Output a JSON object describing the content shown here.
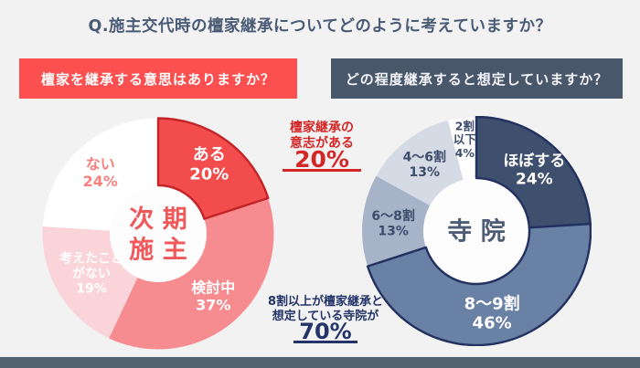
{
  "title": "Q.施主交代時の檀家継承についてどのように考えていますか？",
  "palette": {
    "background": "#F2F2F3",
    "title_color": "#4A5B76",
    "red_banner_bg": "#FC4F4F",
    "navy_banner_bg": "#49576B",
    "banner_text": "#FFFFFF",
    "red_accent": "#D32626",
    "navy_accent": "#233568",
    "bottom_bar": "#53636F"
  },
  "left_chart": {
    "question": "檀家を継承する意思はありますか？"
  },
  "right_chart": {
    "question": "どの程度継承すると想定していますか？"
  },
  "annotations": {
    "left": {
      "lines": [
        "檀家継承の",
        "意志がある"
      ],
      "value": "20%",
      "color": "#D32626"
    },
    "right": {
      "lines": [
        "8割以上が檀家継承と",
        "想定している寺院が"
      ],
      "value": "70%",
      "color": "#233568"
    }
  },
  "chart_data": [
    {
      "type": "pie",
      "subtype": "donut",
      "title": "檀家を継承する意思はありますか？",
      "direction": "clockwise",
      "start_angle_deg": 0,
      "unit": "%",
      "categories": [
        "ある",
        "検討中",
        "考えたことがない",
        "ない"
      ],
      "values": [
        20,
        37,
        19,
        24
      ],
      "center": {
        "lines": [
          "次 期",
          "施 主"
        ],
        "color": "#F0585A",
        "font_size": 27,
        "hole_fill": "#FDFDFE"
      },
      "segments": [
        {
          "label": "ある",
          "value": 20,
          "color": "#F24C4C",
          "stroke": "#C32427",
          "label_lines": [
            "ある",
            "20%"
          ],
          "label_color": "#FFFFFF",
          "font_size": 18,
          "label_radius": 0.75
        },
        {
          "label": "検討中",
          "value": 37,
          "color": "#F68C90",
          "label_lines": [
            "検討中",
            "37%"
          ],
          "label_color": "#FFFFFF",
          "font_size": 16,
          "label_radius": 0.72
        },
        {
          "label": "考えたことがない",
          "value": 19,
          "color": "#FBD4D9",
          "label_lines": [
            "考えたこと",
            "がない",
            "19%"
          ],
          "label_color": "#FFFFFF",
          "font_size": 14,
          "label_radius": 0.67
        },
        {
          "label": "ない",
          "value": 24,
          "color": "#FFFFFF",
          "label_lines": [
            "ない",
            "24%"
          ],
          "label_color": "#F97F7F",
          "font_size": 16,
          "label_radius": 0.73
        }
      ]
    },
    {
      "type": "pie",
      "subtype": "donut",
      "title": "どの程度継承すると想定していますか？",
      "direction": "clockwise",
      "start_angle_deg": 0,
      "unit": "%",
      "categories": [
        "ほぼする",
        "8～9割",
        "6～8割",
        "4～6割",
        "2割以下"
      ],
      "values": [
        24,
        46,
        13,
        13,
        4
      ],
      "center": {
        "lines": [
          "寺 院"
        ],
        "color": "#4D5C75",
        "font_size": 27,
        "hole_fill": "#FDFDFE"
      },
      "segments": [
        {
          "label": "ほぼする",
          "value": 24,
          "color": "#3F4F6E",
          "stroke": "#22315F",
          "label_lines": [
            "ほぼする",
            "24%"
          ],
          "label_color": "#FFFFFF",
          "font_size": 17,
          "label_radius": 0.74
        },
        {
          "label": "8～9割",
          "value": 46,
          "color": "#6981A5",
          "stroke": "#22315F",
          "label_lines": [
            "8～9割",
            "46%"
          ],
          "label_color": "#FFFFFF",
          "font_size": 18,
          "label_radius": 0.73
        },
        {
          "label": "6～8割",
          "value": 13,
          "color": "#A6B3C8",
          "label_lines": [
            "6～8割",
            "13%"
          ],
          "label_color": "#3D4C6B",
          "font_size": 14,
          "label_radius": 0.73
        },
        {
          "label": "4～6割",
          "value": 13,
          "color": "#D5DBE5",
          "label_lines": [
            "4～6割",
            "13%"
          ],
          "label_color": "#3D4C6B",
          "font_size": 14,
          "label_radius": 0.74
        },
        {
          "label": "2割以下",
          "value": 4,
          "color": "#FFFFFF",
          "label_lines": [
            "2割",
            "以下",
            "4%"
          ],
          "label_color": "#3D4C6B",
          "font_size": 12.5,
          "label_radius": 0.81
        }
      ]
    }
  ]
}
